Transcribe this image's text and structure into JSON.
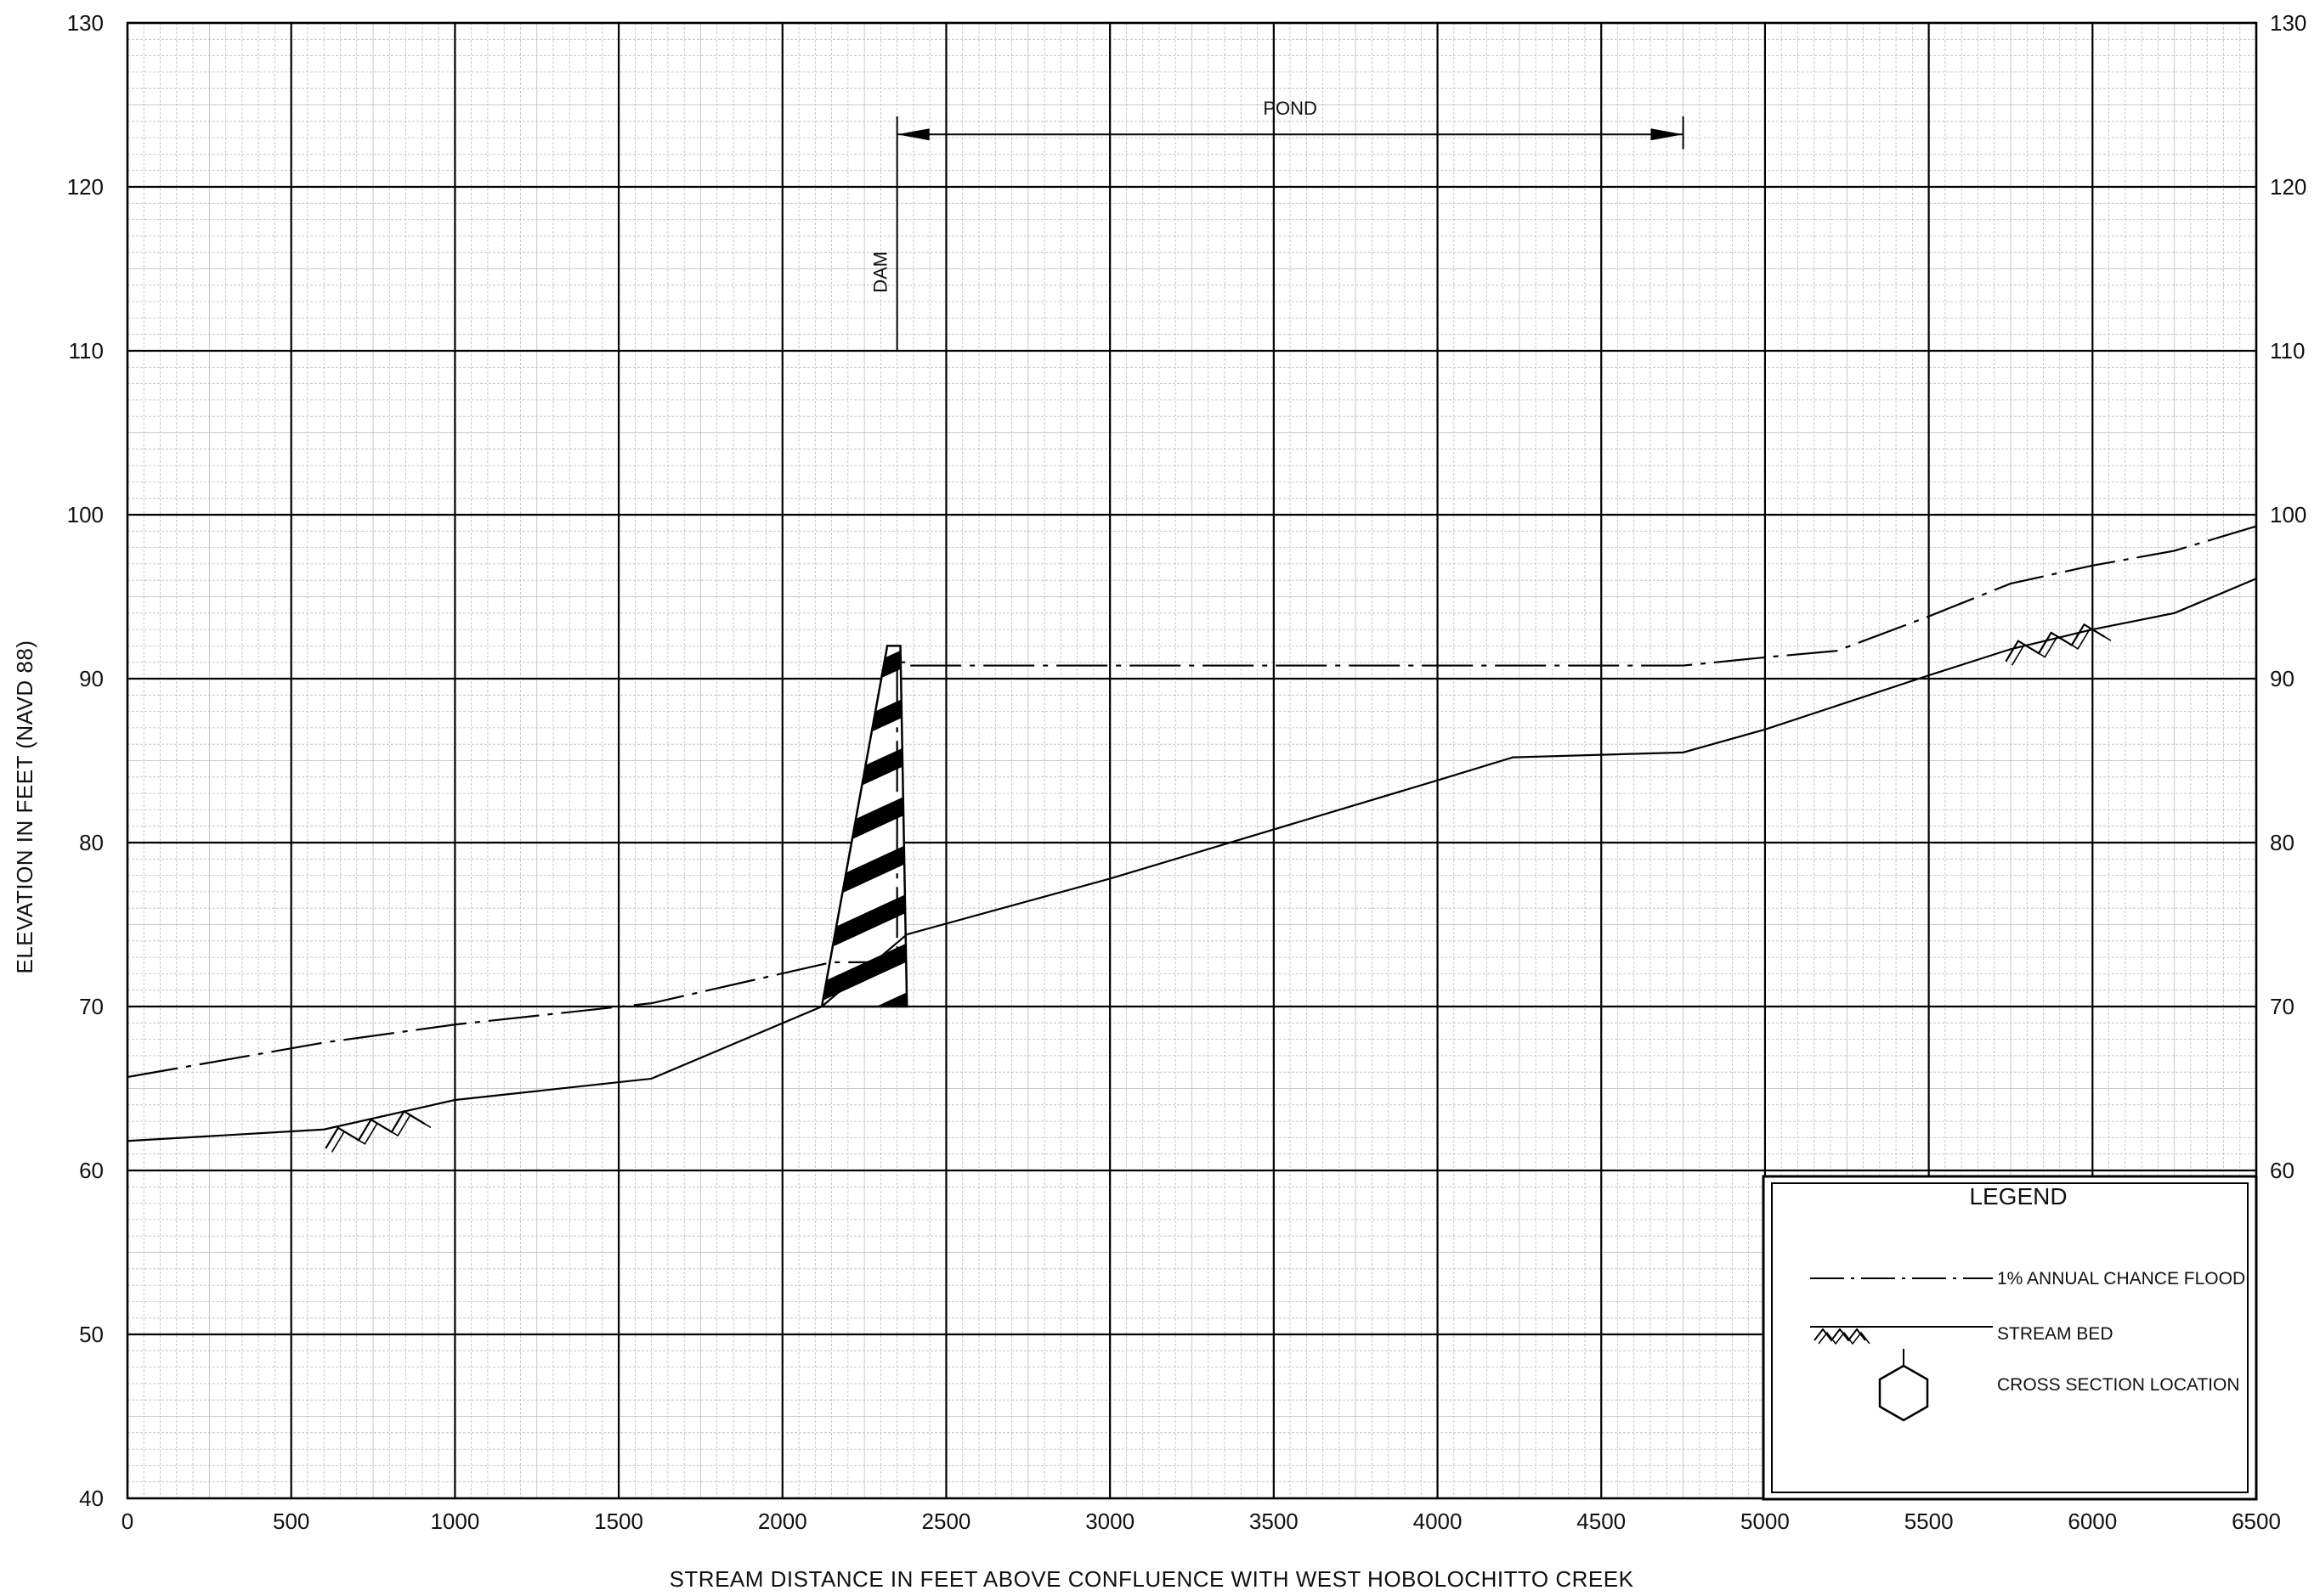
{
  "chart_data": {
    "type": "line",
    "xlabel": "STREAM DISTANCE IN FEET ABOVE CONFLUENCE WITH WEST HOBOLOCHITTO CREEK",
    "ylabel": "ELEVATION IN FEET (NAVD 88)",
    "xlim": [
      0,
      6500
    ],
    "ylim": [
      40,
      130
    ],
    "x_ticks": [
      "0",
      "500",
      "1000",
      "1500",
      "2000",
      "2500",
      "3000",
      "3500",
      "4000",
      "4500",
      "5000",
      "5500",
      "6000",
      "6500"
    ],
    "y_ticks": [
      "40",
      "50",
      "60",
      "70",
      "80",
      "90",
      "100",
      "110",
      "120",
      "130"
    ],
    "y_ticks_right": [
      "60",
      "70",
      "80",
      "90",
      "100",
      "110",
      "120",
      "130"
    ],
    "grid": true,
    "series": [
      {
        "name": "1% ANNUAL CHANCE FLOOD",
        "style": "dash-dot",
        "x": [
          0,
          600,
          1000,
          1600,
          2150,
          2330,
          2350,
          2350,
          2380,
          2380,
          3000,
          4000,
          4750,
          5000,
          5220,
          5500,
          5750,
          6000,
          6250,
          6500
        ],
        "y": [
          65.7,
          67.8,
          68.9,
          70.2,
          72.7,
          72.7,
          72.7,
          91.0,
          91.0,
          90.8,
          90.8,
          90.8,
          90.8,
          91.3,
          91.7,
          93.8,
          95.8,
          96.9,
          97.8,
          99.3
        ]
      },
      {
        "name": "STREAM BED",
        "style": "solid",
        "x": [
          0,
          600,
          1000,
          1600,
          2120,
          2380,
          3000,
          4000,
          4230,
          4750,
          5000,
          5500,
          5750,
          6000,
          6250,
          6500
        ],
        "y": [
          61.8,
          62.5,
          64.3,
          65.6,
          70.0,
          74.4,
          77.8,
          83.8,
          85.2,
          85.5,
          86.9,
          90.2,
          91.8,
          93.0,
          94.0,
          96.1
        ]
      }
    ],
    "dam": {
      "label": "DAM",
      "x_bottom": [
        2120,
        2380
      ],
      "y_bottom": 70.0,
      "x_top": [
        2320,
        2360
      ],
      "y_top": 92.0
    },
    "pond": {
      "label": "POND",
      "x_start": 2350,
      "x_end": 4750
    },
    "stream_bed_symbols": [
      {
        "x": 750,
        "y": 62.6
      },
      {
        "x": 5880,
        "y": 92.3
      }
    ],
    "legend": {
      "title": "LEGEND",
      "placement": "bottom-right",
      "items": [
        {
          "label": "1% ANNUAL CHANCE FLOOD",
          "symbol": "dash-dot"
        },
        {
          "label": "STREAM BED",
          "symbol": "stream-bed"
        },
        {
          "label": "CROSS SECTION LOCATION",
          "symbol": "hexagon"
        }
      ]
    }
  }
}
